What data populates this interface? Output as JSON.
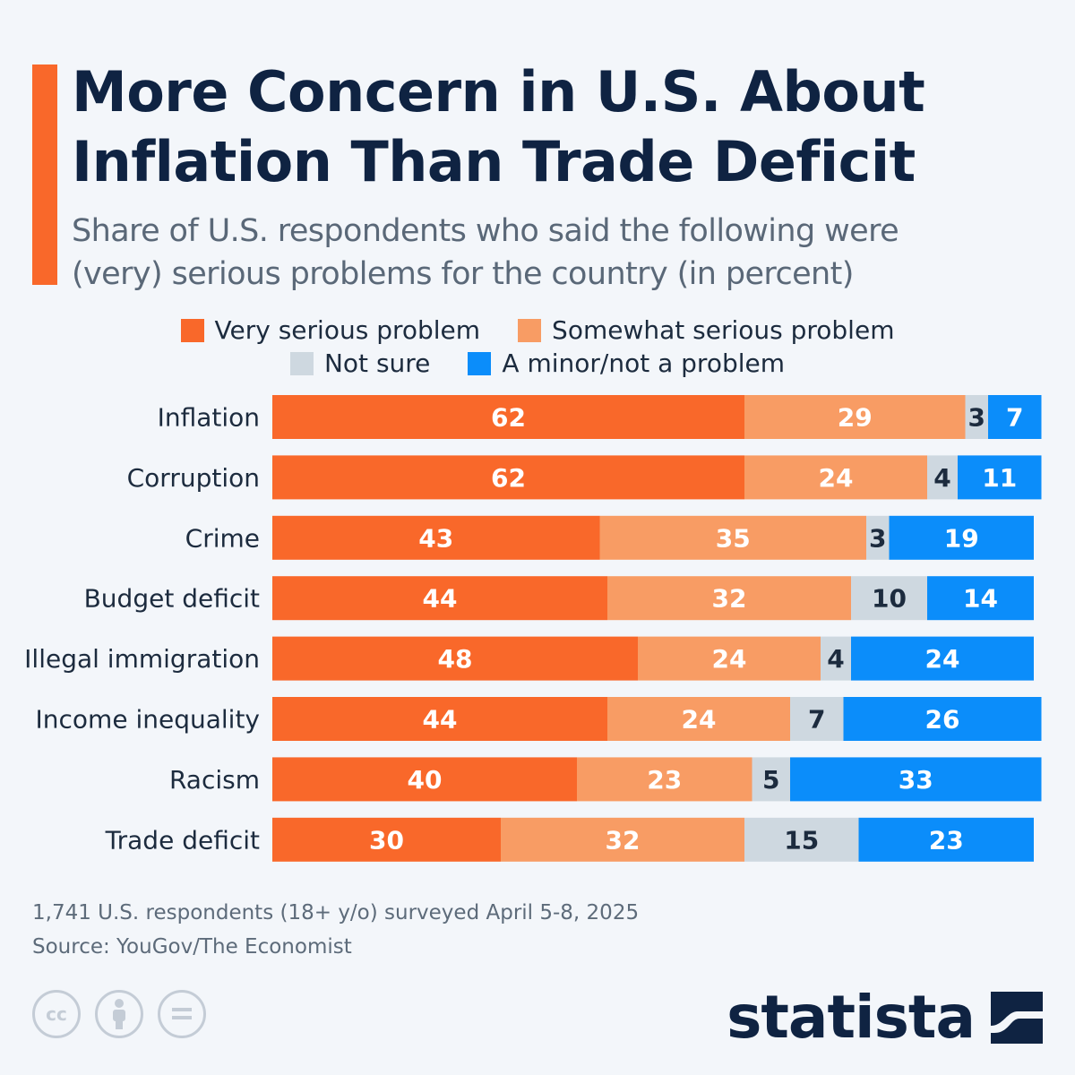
{
  "title_lines": [
    "More Concern in U.S. About",
    "Inflation Than Trade Deficit"
  ],
  "subtitle_lines": [
    "Share of U.S. respondents who said the following were",
    "(very) serious problems for the country (in percent)"
  ],
  "colors": {
    "very_serious": "#f9682a",
    "somewhat_serious": "#f89c64",
    "not_sure": "#ced8e0",
    "minor": "#0b8dfa",
    "accent": "#f9682a",
    "title": "#0f2342"
  },
  "legend": [
    {
      "label": "Very serious problem",
      "color_key": "very_serious"
    },
    {
      "label": "Somewhat serious problem",
      "color_key": "somewhat_serious"
    },
    {
      "label": "Not sure",
      "color_key": "not_sure"
    },
    {
      "label": "A minor/not a problem",
      "color_key": "minor"
    }
  ],
  "chart_data": {
    "type": "bar",
    "orientation": "horizontal",
    "stacked": true,
    "categories": [
      "Inflation",
      "Corruption",
      "Crime",
      "Budget deficit",
      "Illegal immigration",
      "Income inequality",
      "Racism",
      "Trade deficit"
    ],
    "series": [
      {
        "name": "Very serious problem",
        "values": [
          62,
          62,
          43,
          44,
          48,
          44,
          40,
          30
        ]
      },
      {
        "name": "Somewhat serious problem",
        "values": [
          29,
          24,
          35,
          32,
          24,
          24,
          23,
          32
        ]
      },
      {
        "name": "Not sure",
        "values": [
          3,
          4,
          3,
          10,
          4,
          7,
          5,
          15
        ]
      },
      {
        "name": "A minor/not a problem",
        "values": [
          7,
          11,
          19,
          14,
          24,
          26,
          33,
          23
        ]
      }
    ],
    "xlim": [
      0,
      100
    ],
    "grid": false,
    "legend_position": "top"
  },
  "footnote_lines": [
    "1,741 U.S. respondents (18+ y/o) surveyed April 5-8, 2025",
    "Source: YouGov/The Economist"
  ],
  "license_icons": [
    "cc-icon",
    "attribution-icon",
    "no-derivatives-icon"
  ],
  "brand": "statista"
}
